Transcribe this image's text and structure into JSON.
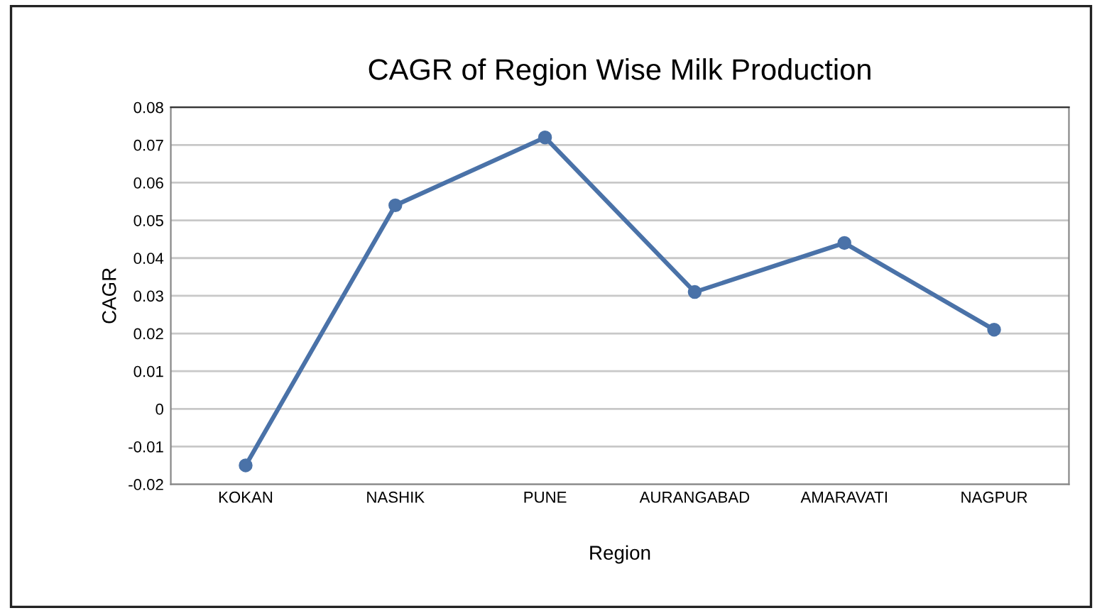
{
  "chart_data": {
    "type": "line",
    "title": "CAGR of Region Wise Milk Production",
    "xlabel": "Region",
    "ylabel": "CAGR",
    "categories": [
      "KOKAN",
      "NASHIK",
      "PUNE",
      "AURANGABAD",
      "AMARAVATI",
      "NAGPUR"
    ],
    "series": [
      {
        "color": "#4a72a8",
        "values": [
          -0.015,
          0.054,
          0.072,
          0.031,
          0.044,
          0.021
        ]
      }
    ],
    "ylim": [
      -0.02,
      0.08
    ],
    "yticks": [
      -0.02,
      -0.01,
      0,
      0.01,
      0.02,
      0.03,
      0.04,
      0.05,
      0.06,
      0.07,
      0.08
    ],
    "grid": "y",
    "marker": "circle",
    "line_style": "solid",
    "legend": false
  }
}
